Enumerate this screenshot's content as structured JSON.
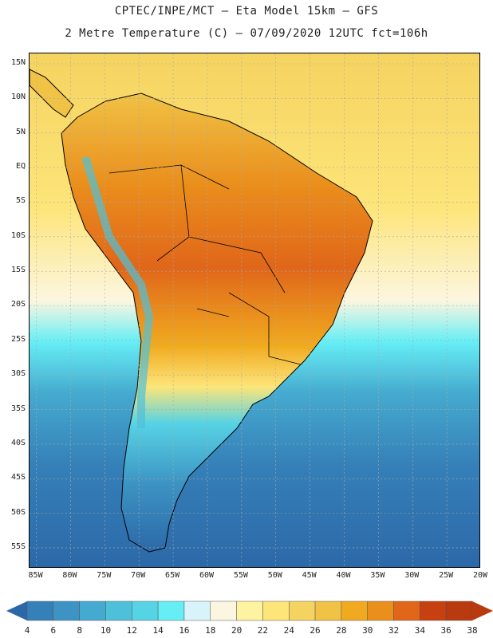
{
  "header": {
    "line1": "CPTEC/INPE/MCT –  Eta Model 15km – GFS",
    "line2": "2 Metre Temperature (C) – 07/09/2020 12UTC fct=106h"
  },
  "map": {
    "lat_labels": [
      "15N",
      "10N",
      "5N",
      "EQ",
      "5S",
      "10S",
      "15S",
      "20S",
      "25S",
      "30S",
      "35S",
      "40S",
      "45S",
      "50S",
      "55S"
    ],
    "lon_labels": [
      "85W",
      "80W",
      "75W",
      "70W",
      "65W",
      "60W",
      "55W",
      "50W",
      "45W",
      "40W",
      "35W",
      "30W",
      "25W",
      "20W"
    ],
    "lat_range": [
      -58,
      16.5
    ],
    "lon_range": [
      -86,
      -20
    ]
  },
  "legend": {
    "levels": [
      "4",
      "6",
      "8",
      "10",
      "12",
      "14",
      "16",
      "18",
      "20",
      "22",
      "24",
      "26",
      "28",
      "30",
      "32",
      "34",
      "36",
      "38"
    ],
    "colors": [
      "#2c68a8",
      "#3580b8",
      "#3d94c4",
      "#45aacf",
      "#4fc0da",
      "#56d3e4",
      "#66eef5",
      "#d8f4fa",
      "#fcf6e0",
      "#fdf3a0",
      "#fde57a",
      "#f5d360",
      "#f0c245",
      "#f0aa1f",
      "#ea8e1c",
      "#e0661a",
      "#c64010",
      "#b83a0e",
      "#2e5fa0"
    ]
  }
}
